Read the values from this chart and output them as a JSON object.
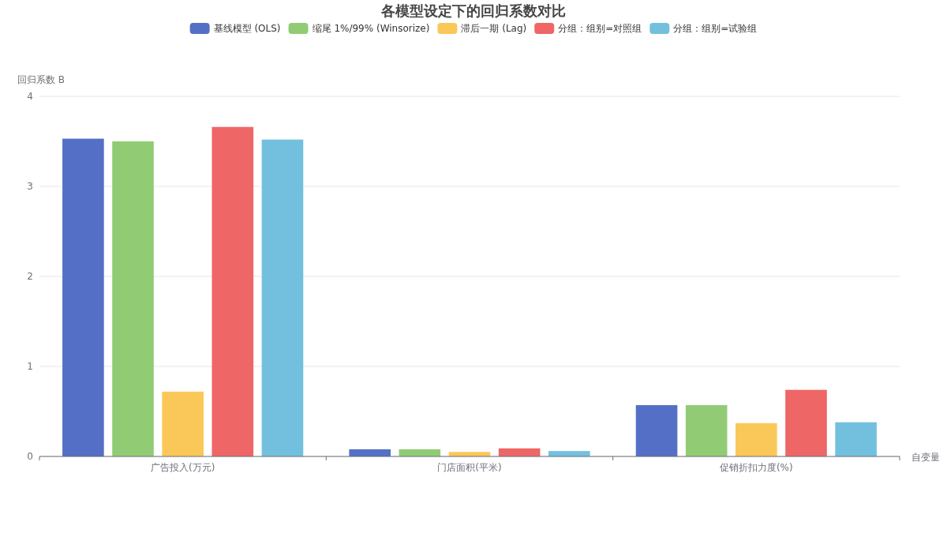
{
  "chart_data": {
    "type": "bar",
    "title": "各模型设定下的回归系数对比",
    "xlabel": "自变量",
    "ylabel": "回归系数 B",
    "categories": [
      "广告投入(万元)",
      "门店面积(平米)",
      "促销折扣力度(%)"
    ],
    "series": [
      {
        "name": "基线模型 (OLS)",
        "color": "#5470c6",
        "values": [
          3.53,
          0.08,
          0.57
        ]
      },
      {
        "name": "缩尾 1%/99% (Winsorize)",
        "color": "#91cc75",
        "values": [
          3.5,
          0.08,
          0.57
        ]
      },
      {
        "name": "滞后一期 (Lag)",
        "color": "#fac858",
        "values": [
          0.72,
          0.05,
          0.37
        ]
      },
      {
        "name": "分组：组别=对照组",
        "color": "#ee6666",
        "values": [
          3.66,
          0.09,
          0.74
        ]
      },
      {
        "name": "分组：组别=试验组",
        "color": "#73c0de",
        "values": [
          3.52,
          0.06,
          0.38
        ]
      }
    ],
    "ylim": [
      0,
      4
    ],
    "yticks": [
      0,
      1,
      2,
      3,
      4
    ],
    "grid": "y",
    "legend": "top"
  }
}
